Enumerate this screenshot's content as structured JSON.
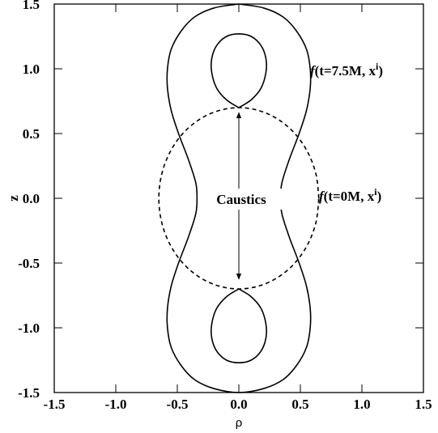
{
  "chart_data": {
    "type": "line",
    "xlabel": "ρ",
    "ylabel": "z",
    "xlim": [
      -1.5,
      1.5
    ],
    "ylim": [
      -1.5,
      1.5
    ],
    "xticks": [
      -1.5,
      {
        "value": -1.0,
        "label": "-1.0"
      },
      -0.5,
      {
        "value": 0.0,
        "label": "0.0"
      },
      0.5,
      {
        "value": 1.0,
        "label": "1.0"
      },
      1.5
    ],
    "yticks": [
      -1.5,
      {
        "value": -1.0,
        "label": "-1.0"
      },
      -0.5,
      {
        "value": 0.0,
        "label": "0.0"
      },
      0.5,
      {
        "value": 1.0,
        "label": "1.0"
      },
      1.5
    ],
    "series": [
      {
        "color": "#000000",
        "dashed": false,
        "x": [
          0,
          0.2,
          0.36,
          0.47,
          0.55,
          0.58,
          0.58,
          0.55,
          0.49,
          0.41,
          0.35,
          0.34,
          0.35,
          0.41,
          0.49,
          0.55,
          0.58,
          0.58,
          0.55,
          0.47,
          0.36,
          0.2,
          0,
          -0.2,
          -0.36,
          -0.47,
          -0.55,
          -0.58,
          -0.58,
          -0.55,
          -0.49,
          -0.41,
          -0.35,
          -0.34,
          -0.35,
          -0.41,
          -0.49,
          -0.55,
          -0.58,
          -0.58,
          -0.55,
          -0.47,
          -0.36,
          -0.2,
          0
        ],
        "values": [
          1.5,
          1.47,
          1.4,
          1.29,
          1.15,
          1.0,
          0.85,
          0.68,
          0.5,
          0.3,
          0.12,
          0,
          -0.12,
          -0.3,
          -0.5,
          -0.68,
          -0.85,
          -1.0,
          -1.15,
          -1.29,
          -1.4,
          -1.47,
          -1.5,
          -1.47,
          -1.4,
          -1.29,
          -1.15,
          -1.0,
          -0.85,
          -0.68,
          -0.5,
          -0.3,
          -0.12,
          0,
          0.12,
          0.3,
          0.5,
          0.68,
          0.85,
          1.0,
          1.15,
          1.29,
          1.4,
          1.47,
          1.5
        ]
      },
      {
        "color": "#000000",
        "dashed": false,
        "x": [
          0,
          0.1,
          0.18,
          0.22,
          0.22,
          0.18,
          0.1,
          0,
          -0.1,
          -0.18,
          -0.22,
          -0.22,
          -0.18,
          -0.1,
          0
        ],
        "values": [
          0.7,
          0.76,
          0.85,
          0.97,
          1.08,
          1.18,
          1.25,
          1.27,
          1.25,
          1.18,
          1.08,
          0.97,
          0.85,
          0.76,
          0.7
        ]
      },
      {
        "color": "#000000",
        "dashed": false,
        "x": [
          0,
          0.1,
          0.18,
          0.22,
          0.22,
          0.18,
          0.1,
          0,
          -0.1,
          -0.18,
          -0.22,
          -0.22,
          -0.18,
          -0.1,
          0
        ],
        "values": [
          -0.7,
          -0.76,
          -0.85,
          -0.97,
          -1.08,
          -1.18,
          -1.25,
          -1.27,
          -1.25,
          -1.18,
          -1.08,
          -0.97,
          -0.85,
          -0.76,
          -0.7
        ]
      },
      {
        "color": "#000000",
        "dashed": true,
        "x": [
          0.65,
          0.628,
          0.563,
          0.46,
          0.325,
          0.168,
          0,
          -0.168,
          -0.325,
          -0.46,
          -0.563,
          -0.628,
          -0.65,
          -0.628,
          -0.563,
          -0.46,
          -0.325,
          -0.168,
          0,
          0.168,
          0.325,
          0.46,
          0.563,
          0.628,
          0.65
        ],
        "values": [
          0,
          0.181,
          0.35,
          0.495,
          0.606,
          0.676,
          0.7,
          0.676,
          0.606,
          0.495,
          0.35,
          0.181,
          0,
          -0.181,
          -0.35,
          -0.495,
          -0.606,
          -0.676,
          -0.7,
          -0.676,
          -0.606,
          -0.495,
          -0.35,
          -0.181,
          0
        ]
      }
    ],
    "annotations": [
      {
        "parts": [
          "f",
          "(t=7.5M, x",
          "i",
          ")"
        ]
      },
      {
        "parts": [
          "f",
          "(t=0M, x",
          "i",
          ")"
        ]
      },
      {
        "parts": [
          "Caustics"
        ]
      }
    ]
  }
}
